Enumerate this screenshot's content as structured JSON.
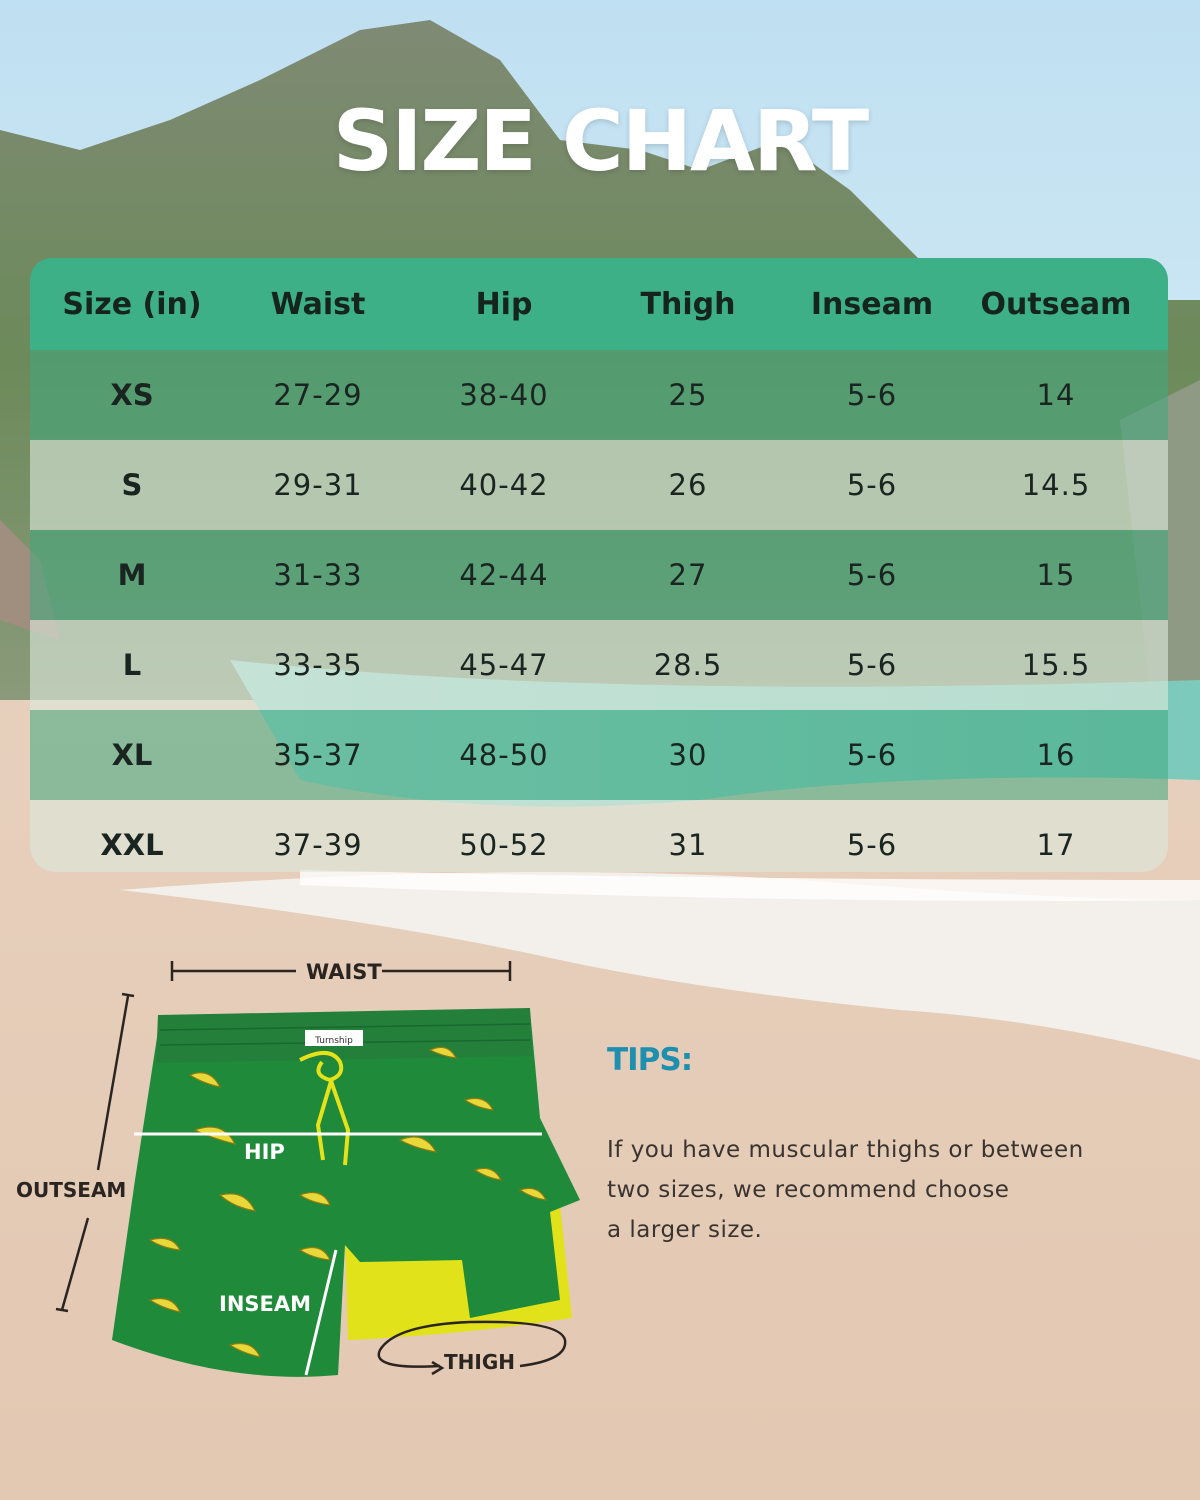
{
  "title": "SIZE CHART",
  "table": {
    "headers": [
      "Size (in)",
      "Waist",
      "Hip",
      "Thigh",
      "Inseam",
      "Outseam"
    ],
    "rows": [
      [
        "XS",
        "27-29",
        "38-40",
        "25",
        "5-6",
        "14"
      ],
      [
        "S",
        "29-31",
        "40-42",
        "26",
        "5-6",
        "14.5"
      ],
      [
        "M",
        "31-33",
        "42-44",
        "27",
        "5-6",
        "15"
      ],
      [
        "L",
        "33-35",
        "45-47",
        "28.5",
        "5-6",
        "15.5"
      ],
      [
        "XL",
        "35-37",
        "48-50",
        "30",
        "5-6",
        "16"
      ],
      [
        "XXL",
        "37-39",
        "50-52",
        "31",
        "5-6",
        "17"
      ]
    ]
  },
  "diagram": {
    "waist_label": "WAIST",
    "hip_label": "HIP",
    "outseam_label": "OUTSEAM",
    "inseam_label": "INSEAM",
    "thigh_label": "THIGH",
    "brand_tag": "Turnship"
  },
  "tips": {
    "title": "TIPS:",
    "lines": [
      "If you have muscular thighs or between",
      "two sizes, we recommend choose",
      "a larger size."
    ]
  },
  "colors": {
    "header_green": "#3db088",
    "shorts_green": "#1e8a3a",
    "liner_yellow": "#e2e21a",
    "tips_blue": "#1f8fb0"
  }
}
